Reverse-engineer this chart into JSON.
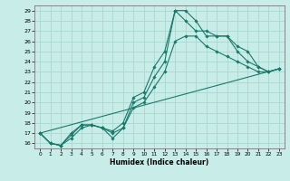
{
  "xlabel": "Humidex (Indice chaleur)",
  "bg_color": "#c8ede8",
  "grid_color": "#a8d8d0",
  "line_color": "#1a7a6a",
  "xlim": [
    -0.5,
    23.5
  ],
  "ylim": [
    15.5,
    29.5
  ],
  "xticks": [
    0,
    1,
    2,
    3,
    4,
    5,
    6,
    7,
    8,
    9,
    10,
    11,
    12,
    13,
    14,
    15,
    16,
    17,
    18,
    19,
    20,
    21,
    22,
    23
  ],
  "yticks": [
    16,
    17,
    18,
    19,
    20,
    21,
    22,
    23,
    24,
    25,
    26,
    27,
    28,
    29
  ],
  "line1_x": [
    0,
    1,
    2,
    3,
    4,
    5,
    6,
    7,
    8,
    9,
    10,
    11,
    12,
    13,
    14,
    15,
    16,
    17,
    18,
    19,
    20,
    21,
    22,
    23
  ],
  "line1_y": [
    17,
    16,
    15.8,
    17,
    17.8,
    17.8,
    17.5,
    17.2,
    18,
    20.5,
    21,
    23.5,
    25,
    29,
    29,
    28,
    26.5,
    26.5,
    26.5,
    25,
    24,
    23.5,
    23,
    23.3
  ],
  "line2_x": [
    0,
    1,
    2,
    3,
    4,
    5,
    6,
    7,
    8,
    9,
    10,
    11,
    12,
    13,
    14,
    15,
    16,
    17,
    18,
    19,
    20,
    21,
    22,
    23
  ],
  "line2_y": [
    17,
    16,
    15.8,
    16.8,
    17.8,
    17.8,
    17.5,
    16.5,
    17.5,
    20,
    20.5,
    22.5,
    24,
    29,
    28,
    27,
    27,
    26.5,
    26.5,
    25.5,
    25,
    23.5,
    23,
    23.3
  ],
  "line3_x": [
    0,
    1,
    2,
    3,
    4,
    5,
    6,
    7,
    8,
    9,
    10,
    11,
    12,
    13,
    14,
    15,
    16,
    17,
    18,
    19,
    20,
    21,
    22,
    23
  ],
  "line3_y": [
    17,
    16,
    15.8,
    16.5,
    17.5,
    17.8,
    17.5,
    17,
    17.5,
    19.5,
    20,
    21.5,
    23,
    26,
    26.5,
    26.5,
    25.5,
    25,
    24.5,
    24,
    23.5,
    23,
    23,
    23.3
  ],
  "line4_x": [
    0,
    23
  ],
  "line4_y": [
    17,
    23.3
  ]
}
